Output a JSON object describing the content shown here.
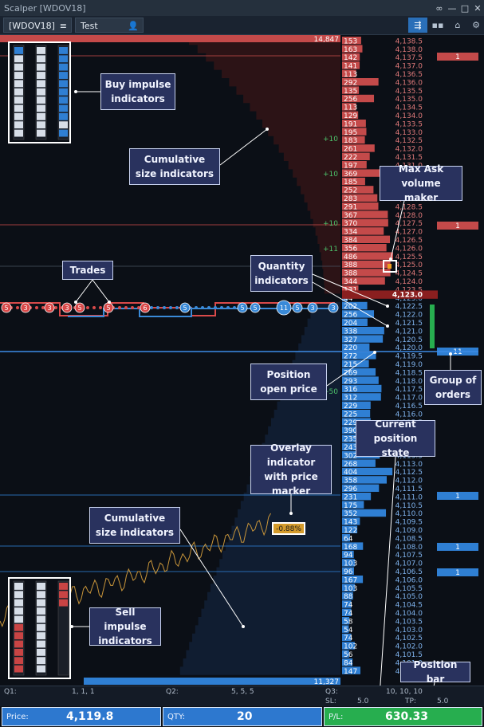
{
  "window": {
    "title": "Scalper [WDOV18]"
  },
  "toolbar": {
    "symbol": "[WDOV18]",
    "account": "Test"
  },
  "dom": {
    "rows": [
      {
        "size": 153,
        "price": "4,138.5"
      },
      {
        "size": 163,
        "price": "4,138.0"
      },
      {
        "size": 142,
        "price": "4,137.5"
      },
      {
        "size": 141,
        "price": "4,137.0"
      },
      {
        "size": 113,
        "price": "4,136.5"
      },
      {
        "size": 292,
        "price": "4,136.0"
      },
      {
        "size": 135,
        "price": "4,135.5"
      },
      {
        "size": 256,
        "price": "4,135.0"
      },
      {
        "size": 113,
        "price": "4,134.5"
      },
      {
        "size": 129,
        "price": "4,134.0"
      },
      {
        "size": 191,
        "price": "4,133.5"
      },
      {
        "size": 195,
        "price": "4,133.0"
      },
      {
        "size": 183,
        "price": "4,132.5"
      },
      {
        "size": 261,
        "price": "4,132.0"
      },
      {
        "size": 222,
        "price": "4,131.5"
      },
      {
        "size": 197,
        "price": "4,131.0"
      },
      {
        "size": 369,
        "price": "4,130.5"
      },
      {
        "size": 185,
        "price": "4,130.0"
      },
      {
        "size": 252,
        "price": "4,129.5"
      },
      {
        "size": 283,
        "price": "4,129.0"
      },
      {
        "size": 291,
        "price": "4,128.5"
      },
      {
        "size": 367,
        "price": "4,128.0"
      },
      {
        "size": 370,
        "price": "4,127.5"
      },
      {
        "size": 334,
        "price": "4,127.0"
      },
      {
        "size": 384,
        "price": "4,126.5"
      },
      {
        "size": 356,
        "price": "4,126.0"
      },
      {
        "size": 486,
        "price": "4,125.5"
      },
      {
        "size": 388,
        "price": "4,125.0"
      },
      {
        "size": 388,
        "price": "4,124.5"
      },
      {
        "size": 344,
        "price": "4,124.0"
      },
      {
        "size": 131,
        "price": "4,123.5"
      },
      {
        "size": 44,
        "price": "4,123.0"
      },
      {
        "size": 202,
        "price": "4,122.5"
      },
      {
        "size": 256,
        "price": "4,122.0"
      },
      {
        "size": 204,
        "price": "4,121.5"
      },
      {
        "size": 338,
        "price": "4,121.0"
      },
      {
        "size": 327,
        "price": "4,120.5"
      },
      {
        "size": 220,
        "price": "4,120.0"
      },
      {
        "size": 272,
        "price": "4,119.5"
      },
      {
        "size": 215,
        "price": "4,119.0"
      },
      {
        "size": 269,
        "price": "4,118.5"
      },
      {
        "size": 293,
        "price": "4,118.0"
      },
      {
        "size": 316,
        "price": "4,117.5"
      },
      {
        "size": 312,
        "price": "4,117.0"
      },
      {
        "size": 229,
        "price": "4,116.5"
      },
      {
        "size": 225,
        "price": "4,116.0"
      },
      {
        "size": 229,
        "price": "4,115.5"
      },
      {
        "size": 390,
        "price": "4,115.0"
      },
      {
        "size": 235,
        "price": "4,114.5"
      },
      {
        "size": 243,
        "price": "4,114.0"
      },
      {
        "size": 302,
        "price": "4,113.5"
      },
      {
        "size": 268,
        "price": "4,113.0"
      },
      {
        "size": 404,
        "price": "4,112.5"
      },
      {
        "size": 358,
        "price": "4,112.0"
      },
      {
        "size": 296,
        "price": "4,111.5"
      },
      {
        "size": 231,
        "price": "4,111.0"
      },
      {
        "size": 175,
        "price": "4,110.5"
      },
      {
        "size": 352,
        "price": "4,110.0"
      },
      {
        "size": 143,
        "price": "4,109.5"
      },
      {
        "size": 122,
        "price": "4,109.0"
      },
      {
        "size": 64,
        "price": "4,108.5"
      },
      {
        "size": 168,
        "price": "4,108.0"
      },
      {
        "size": 94,
        "price": "4,107.5"
      },
      {
        "size": 103,
        "price": "4,107.0"
      },
      {
        "size": 96,
        "price": "4,106.5"
      },
      {
        "size": 167,
        "price": "4,106.0"
      },
      {
        "size": 103,
        "price": "4,105.5"
      },
      {
        "size": 88,
        "price": "4,105.0"
      },
      {
        "size": 74,
        "price": "4,104.5"
      },
      {
        "size": 74,
        "price": "4,104.0"
      },
      {
        "size": 58,
        "price": "4,103.5"
      },
      {
        "size": 54,
        "price": "4,103.0"
      },
      {
        "size": 74,
        "price": "4,102.5"
      },
      {
        "size": 102,
        "price": "4,102.0"
      },
      {
        "size": 56,
        "price": "4,101.5"
      },
      {
        "size": 84,
        "price": "4,101.0"
      },
      {
        "size": 147,
        "price": "4,100.5"
      }
    ],
    "top_cumulative": "14,847",
    "bottom_cumulative": "11,327",
    "plus_markers": [
      "+10",
      "+10",
      "+10",
      "+11",
      "+50"
    ],
    "orders": [
      "1",
      "1",
      "11",
      "1",
      "1",
      "1"
    ],
    "overlay_value": "-0.88%",
    "trade_bubbles": [
      "5",
      "3",
      "3",
      "3",
      "5",
      "5",
      "6",
      "5",
      "5",
      "5",
      "11",
      "5",
      "3",
      "3"
    ]
  },
  "callouts": {
    "buy_impulse": "Buy impulse indicators",
    "cumulative_top": "Cumulative size indicators",
    "max_ask": "Max Ask volume maker",
    "trades": "Trades",
    "quantity": "Quantity indicators",
    "position_open": "Position open price",
    "group_orders": "Group of orders",
    "current_state": "Current position state",
    "overlay": "Overlay indicator with price marker",
    "cumulative_bottom": "Cumulative size indicators",
    "sell_impulse": "Sell impulse indicators",
    "position_bar": "Position bar"
  },
  "stats": {
    "q1_label": "Q1:",
    "q1": "1, 1, 1",
    "q2_label": "Q2:",
    "q2": "5, 5, 5",
    "q3_label": "Q3:",
    "q3": "10, 10, 10",
    "sl_label": "SL:",
    "sl": "5.0",
    "tp_label": "TP:",
    "tp": "5.0"
  },
  "bottom": {
    "price_label": "Price:",
    "price": "4,119.8",
    "qty_label": "QTY:",
    "qty": "20",
    "pl_label": "P/L:",
    "pl": "630.33"
  },
  "colors": {
    "ask": "#c44a4a",
    "bid": "#2f7fd3",
    "accent": "#27ae4f",
    "price_text": "#e0e6ee"
  }
}
